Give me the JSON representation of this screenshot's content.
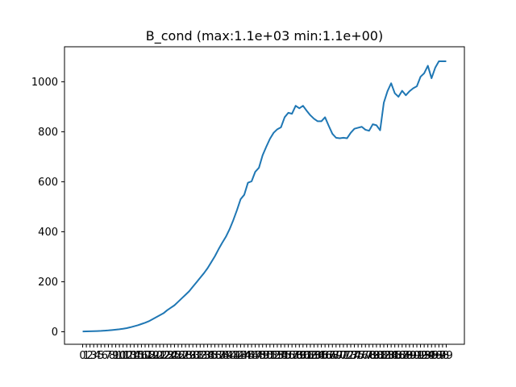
{
  "chart_data": {
    "type": "line",
    "title": "B_cond (max:1.1e+03 min:1.1e+00)",
    "xlabel": "",
    "ylabel": "",
    "ylim": [
      -50,
      1140
    ],
    "yticks": [
      0,
      200,
      400,
      600,
      800,
      1000
    ],
    "xticks": [
      0,
      1,
      2,
      3,
      4,
      5,
      6,
      7,
      8,
      9,
      10,
      11,
      12,
      13,
      14,
      15,
      16,
      17,
      18,
      19,
      20,
      21,
      22,
      23,
      24,
      25,
      26,
      27,
      28,
      29,
      30,
      31,
      32,
      33,
      34,
      35,
      36,
      37,
      38,
      39,
      40,
      41,
      42,
      43,
      44,
      45,
      46,
      47,
      48,
      49,
      50,
      51,
      52,
      53,
      54,
      55,
      56,
      57,
      58,
      59,
      60,
      61,
      62,
      63,
      64,
      65,
      66,
      67,
      68,
      69,
      70,
      71,
      72,
      73,
      74,
      75,
      76,
      77,
      78,
      79,
      80,
      81,
      82,
      83,
      84,
      85,
      86,
      87,
      88,
      89,
      90,
      91,
      92,
      93,
      94,
      95,
      96,
      97,
      98,
      99
    ],
    "grid": false,
    "line_color": "#1f77b4",
    "series": [
      {
        "x": [
          0,
          1,
          2,
          3,
          4,
          5,
          6,
          7,
          8,
          9,
          10,
          11,
          12,
          13,
          14,
          15,
          16,
          17,
          18,
          19,
          20,
          21,
          22,
          23,
          24,
          25,
          26,
          27,
          28,
          29,
          30,
          31,
          32,
          33,
          34,
          35,
          36,
          37,
          38,
          39,
          40,
          41,
          42,
          43,
          44,
          45,
          46,
          47,
          48,
          49,
          50,
          51,
          52,
          53,
          54,
          55,
          56,
          57,
          58,
          59,
          60,
          61,
          62,
          63,
          64,
          65,
          66,
          67,
          68,
          69,
          70,
          71,
          72,
          73,
          74,
          75,
          76,
          77,
          78,
          79,
          80,
          81,
          82,
          83,
          84,
          85,
          86,
          87,
          88,
          89,
          90,
          91,
          92,
          93,
          94,
          95,
          96,
          97,
          98,
          99
        ],
        "values": [
          1.1,
          1.5,
          2,
          2.5,
          3,
          3.5,
          4.5,
          5.5,
          7,
          8.5,
          10,
          12,
          14.5,
          18,
          22,
          26,
          31,
          36,
          42,
          50,
          58,
          66,
          74,
          86,
          96,
          106,
          120,
          134,
          148,
          162,
          180,
          198,
          216,
          234,
          254,
          278,
          302,
          330,
          356,
          380,
          410,
          446,
          486,
          530,
          548,
          596,
          602,
          640,
          656,
          706,
          740,
          772,
          796,
          810,
          818,
          858,
          876,
          872,
          904,
          894,
          904,
          884,
          866,
          852,
          842,
          842,
          858,
          824,
          792,
          776,
          774,
          776,
          774,
          796,
          812,
          816,
          820,
          808,
          804,
          830,
          826,
          806,
          916,
          962,
          994,
          954,
          940,
          964,
          946,
          962,
          974,
          982,
          1020,
          1034,
          1064,
          1014,
          1056,
          1082,
          1082,
          1082
        ]
      }
    ]
  }
}
